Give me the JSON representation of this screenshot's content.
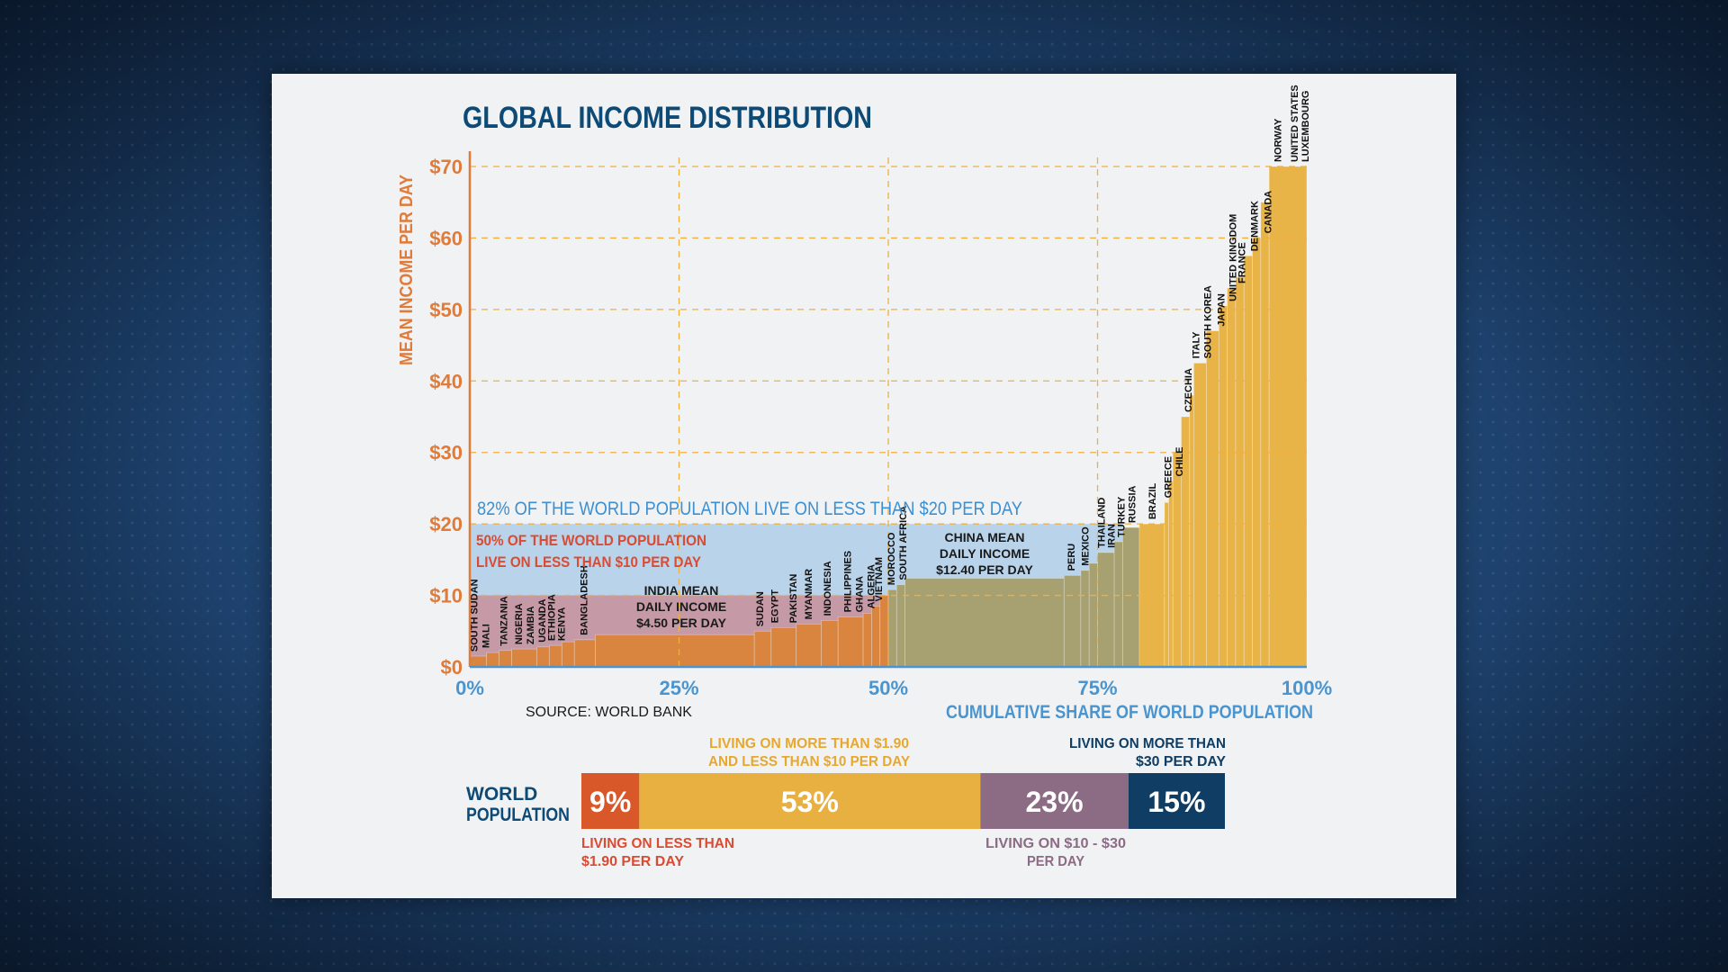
{
  "colors": {
    "title": "#0d4a76",
    "axis_orange": "#e07b39",
    "axis_blue": "#4a95cf",
    "band_blue": "#b9d3ea",
    "band_pink": "#c59aa6",
    "bar_low": "#d9853f",
    "bar_mid": "#a7a071",
    "bar_high": "#e9b447",
    "grid": "#f0b040",
    "seg_red": "#d9582a",
    "seg_yellow": "#e8b040",
    "seg_purple": "#8c6b85",
    "seg_navy": "#0f3d63",
    "text_red": "#d94b33",
    "text_blue_band": "#3d8fd0"
  },
  "chart_data": {
    "type": "bar",
    "title": "GLOBAL INCOME DISTRIBUTION",
    "xlabel": "CUMULATIVE SHARE OF WORLD POPULATION",
    "ylabel": "MEAN INCOME PER DAY",
    "xlim": [
      0,
      100
    ],
    "ylim": [
      0,
      70
    ],
    "y_ticks": [
      "$0",
      "$10",
      "$20",
      "$30",
      "$40",
      "$50",
      "$60",
      "$70"
    ],
    "x_ticks": [
      "0%",
      "25%",
      "50%",
      "75%",
      "100%"
    ],
    "grid": "dashed at $10 intervals and 25% intervals",
    "source": "SOURCE: WORLD BANK",
    "steps": [
      [
        0,
        1.5,
        2
      ],
      [
        2,
        2.0,
        3.5
      ],
      [
        3.5,
        2.3,
        5
      ],
      [
        5,
        2.5,
        8
      ],
      [
        8,
        2.8,
        9.5
      ],
      [
        9.5,
        3.0,
        11
      ],
      [
        11,
        3.5,
        12.5
      ],
      [
        12.5,
        3.8,
        15
      ],
      [
        15,
        4.5,
        34
      ],
      [
        34,
        5.0,
        36
      ],
      [
        36,
        5.5,
        39
      ],
      [
        39,
        6.0,
        42
      ],
      [
        42,
        6.5,
        44
      ],
      [
        44,
        7.0,
        47
      ],
      [
        47,
        7.5,
        48
      ],
      [
        48,
        8.5,
        49
      ],
      [
        49,
        10.0,
        50
      ],
      [
        50,
        10.8,
        51
      ],
      [
        51,
        11.5,
        52
      ],
      [
        52,
        12.4,
        71
      ],
      [
        71,
        12.8,
        73
      ],
      [
        73,
        13.5,
        74
      ],
      [
        74,
        14.5,
        75
      ],
      [
        75,
        16.0,
        77
      ],
      [
        77,
        17.5,
        78
      ],
      [
        78,
        19.5,
        80
      ],
      [
        80,
        20.0,
        83
      ],
      [
        83,
        23.0,
        83.5
      ],
      [
        83.5,
        26.0,
        84
      ],
      [
        84,
        30.0,
        85
      ],
      [
        85,
        35.0,
        86
      ],
      [
        86,
        38.0,
        86.5
      ],
      [
        86.5,
        42.5,
        88
      ],
      [
        88,
        47.0,
        89.5
      ],
      [
        89.5,
        50.5,
        90.5
      ],
      [
        90.5,
        53.0,
        91.5
      ],
      [
        91.5,
        54.5,
        92.5
      ],
      [
        92.5,
        57.5,
        93.5
      ],
      [
        93.5,
        60.0,
        94.5
      ],
      [
        94.5,
        65.0,
        95.5
      ],
      [
        95.5,
        70.0,
        100
      ]
    ],
    "country_labels": [
      {
        "label": "SOUTH SUDAN",
        "x": 0.4,
        "y": 1.5
      },
      {
        "label": "MALI",
        "x": 1.8,
        "y": 2.0
      },
      {
        "label": "TANZANIA",
        "x": 3.9,
        "y": 2.3
      },
      {
        "label": "NIGERIA",
        "x": 5.7,
        "y": 2.5
      },
      {
        "label": "ZAMBIA",
        "x": 7.1,
        "y": 2.5
      },
      {
        "label": "UGANDA",
        "x": 8.5,
        "y": 2.8
      },
      {
        "label": "ETHIOPIA",
        "x": 9.6,
        "y": 3.0
      },
      {
        "label": "KENYA",
        "x": 10.8,
        "y": 3.0
      },
      {
        "label": "BANGLADESH",
        "x": 13.5,
        "y": 3.8
      },
      {
        "label": "SUDAN",
        "x": 34.5,
        "y": 5.0
      },
      {
        "label": "EGYPT",
        "x": 36.3,
        "y": 5.5
      },
      {
        "label": "PAKISTAN",
        "x": 38.5,
        "y": 5.5
      },
      {
        "label": "MYANMAR",
        "x": 40.3,
        "y": 6.0
      },
      {
        "label": "INDONESIA",
        "x": 42.6,
        "y": 6.5
      },
      {
        "label": "PHILIPPINES",
        "x": 45.0,
        "y": 7.0
      },
      {
        "label": "GHANA",
        "x": 46.4,
        "y": 7.0
      },
      {
        "label": "ALGERIA",
        "x": 47.8,
        "y": 7.5
      },
      {
        "label": "VIETNAM",
        "x": 48.7,
        "y": 8.5
      },
      {
        "label": "MOROCCO",
        "x": 50.2,
        "y": 10.8
      },
      {
        "label": "SOUTH AFRICA",
        "x": 51.6,
        "y": 11.5
      },
      {
        "label": "PERU",
        "x": 71.7,
        "y": 12.8
      },
      {
        "label": "MEXICO",
        "x": 73.4,
        "y": 13.5
      },
      {
        "label": "THAILAND",
        "x": 75.3,
        "y": 16.0
      },
      {
        "label": "IRAN",
        "x": 76.5,
        "y": 16.0
      },
      {
        "label": "TURKEY",
        "x": 77.7,
        "y": 17.5
      },
      {
        "label": "RUSSIA",
        "x": 79.0,
        "y": 19.5
      },
      {
        "label": "BRAZIL",
        "x": 81.4,
        "y": 20.0
      },
      {
        "label": "GREECE",
        "x": 83.3,
        "y": 23.0
      },
      {
        "label": "CHILE",
        "x": 84.6,
        "y": 26.0
      },
      {
        "label": "CZECHIA",
        "x": 85.7,
        "y": 35.0
      },
      {
        "label": "ITALY",
        "x": 86.6,
        "y": 42.5
      },
      {
        "label": "SOUTH KOREA",
        "x": 88.0,
        "y": 42.5
      },
      {
        "label": "JAPAN",
        "x": 89.6,
        "y": 47.0
      },
      {
        "label": "UNITED KINGDOM",
        "x": 91.0,
        "y": 50.5
      },
      {
        "label": "FRANCE",
        "x": 92.1,
        "y": 53.0
      },
      {
        "label": "DENMARK",
        "x": 93.6,
        "y": 57.5
      },
      {
        "label": "CANADA",
        "x": 95.2,
        "y": 60.0
      },
      {
        "label": "NORWAY",
        "x": 96.4,
        "y": 70.0
      },
      {
        "label": "UNITED STATES",
        "x": 98.4,
        "y": 70.0
      },
      {
        "label": "LUXEMBOURG",
        "x": 99.7,
        "y": 70.0
      }
    ],
    "annotations": {
      "band20": "82% OF THE WORLD POPULATION LIVE ON LESS THAN $20 PER DAY",
      "band10_line1": "50% OF THE WORLD POPULATION",
      "band10_line2": "LIVE ON LESS THAN $10 PER DAY",
      "india_line1": "INDIA MEAN",
      "india_line2": "DAILY INCOME",
      "india_line3": "$4.50 PER DAY",
      "china_line1": "CHINA MEAN",
      "china_line2": "DAILY INCOME",
      "china_line3": "$12.40 PER DAY"
    }
  },
  "population_bar": {
    "label_line1": "WORLD",
    "label_line2": "POPULATION",
    "segments": [
      {
        "value": 9,
        "text": "9%",
        "color": "#d9582a"
      },
      {
        "value": 53,
        "text": "53%",
        "color": "#e8b040"
      },
      {
        "value": 23,
        "text": "23%",
        "color": "#8c6b85"
      },
      {
        "value": 15,
        "text": "15%",
        "color": "#0f3d63"
      }
    ],
    "label_top_yellow_1": "LIVING ON MORE THAN $1.90",
    "label_top_yellow_2": "AND LESS THAN $10 PER DAY",
    "label_top_navy_1": "LIVING ON MORE THAN",
    "label_top_navy_2": "$30 PER DAY",
    "label_bottom_red_1": "LIVING ON LESS THAN",
    "label_bottom_red_2": "$1.90 PER DAY",
    "label_bottom_purple_1": "LIVING ON $10 - $30",
    "label_bottom_purple_2": "PER DAY"
  }
}
